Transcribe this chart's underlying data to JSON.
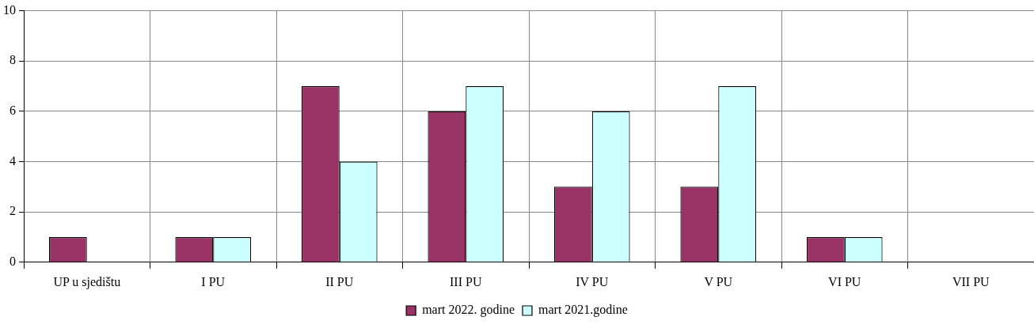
{
  "chart_data": {
    "type": "bar",
    "categories": [
      "UP u sjedištu",
      "I PU",
      "II PU",
      "III PU",
      "IV PU",
      "V PU",
      "VI PU",
      "VII PU"
    ],
    "series": [
      {
        "name": "mart 2022. godine",
        "color": "#993366",
        "values": [
          1,
          1,
          7,
          6,
          3,
          3,
          1,
          0
        ]
      },
      {
        "name": "mart 2021.godine",
        "color": "#ccffff",
        "values": [
          0,
          1,
          4,
          7,
          6,
          7,
          1,
          0
        ]
      }
    ],
    "ylim": [
      0,
      10
    ],
    "yticks": [
      0,
      2,
      4,
      6,
      8,
      10
    ],
    "grid": true,
    "legend": "bottom"
  }
}
